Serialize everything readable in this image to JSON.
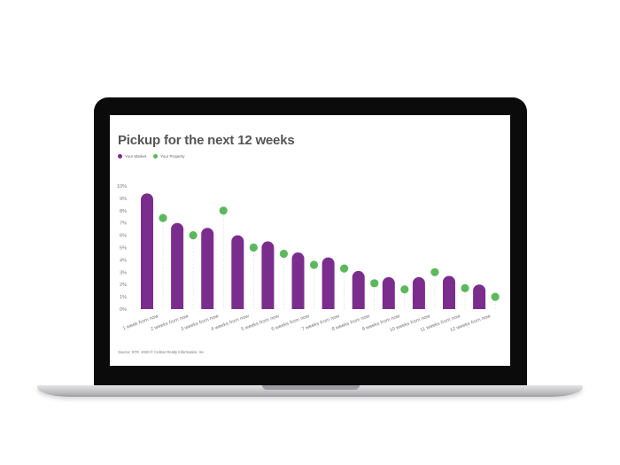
{
  "colors": {
    "market": "#7b2d8e",
    "property": "#5cb85c"
  },
  "chart_data": {
    "type": "bar",
    "title": "Pickup for the next 12 weeks",
    "categories": [
      "1 week from now",
      "2 weeks from now",
      "3 weeks from now",
      "4 weeks from now",
      "5 weeks from now",
      "6 weeks from now",
      "7 weeks from now",
      "8 weeks from now",
      "9 weeks from now",
      "10 weeks from now",
      "11 weeks from now",
      "12 weeks from now"
    ],
    "yticks": [
      "0%",
      "1%",
      "2%",
      "3%",
      "4%",
      "5%",
      "6%",
      "7%",
      "8%",
      "9%",
      "10%"
    ],
    "ylim": [
      0,
      10
    ],
    "series": [
      {
        "name": "Your Market",
        "kind": "bar",
        "values": [
          9.4,
          7.0,
          6.6,
          6.0,
          5.5,
          4.6,
          4.2,
          3.1,
          2.6,
          2.6,
          2.7,
          2.0
        ]
      },
      {
        "name": "Your Property",
        "kind": "dot",
        "values": [
          7.4,
          6.0,
          8.0,
          5.0,
          4.5,
          3.6,
          3.3,
          2.1,
          1.6,
          3.0,
          1.7,
          1.0
        ]
      }
    ],
    "legend_position": "top-left",
    "grid": false
  },
  "source": "Source: STR. 2020 © CoStar Realty Information, Inc."
}
